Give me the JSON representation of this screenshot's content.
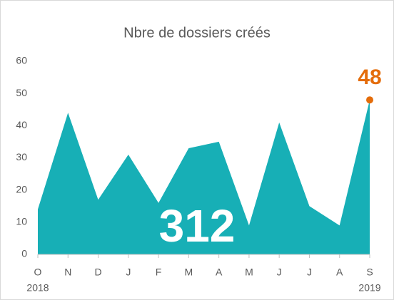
{
  "chart_data": {
    "type": "area",
    "title": "Nbre de dossiers créés",
    "categories": [
      "O",
      "N",
      "D",
      "J",
      "F",
      "M",
      "A",
      "M",
      "J",
      "J",
      "A",
      "S"
    ],
    "year_labels": [
      "2018",
      "2019"
    ],
    "values": [
      14,
      44,
      17,
      31,
      16,
      33,
      35,
      9,
      41,
      15,
      9,
      48
    ],
    "color": "#17afb6",
    "highlight_color": "#e46c0a",
    "total": 312,
    "ylim": [
      0,
      60
    ],
    "yticks": [
      0,
      10,
      20,
      30,
      40,
      50,
      60
    ],
    "grid": false
  }
}
